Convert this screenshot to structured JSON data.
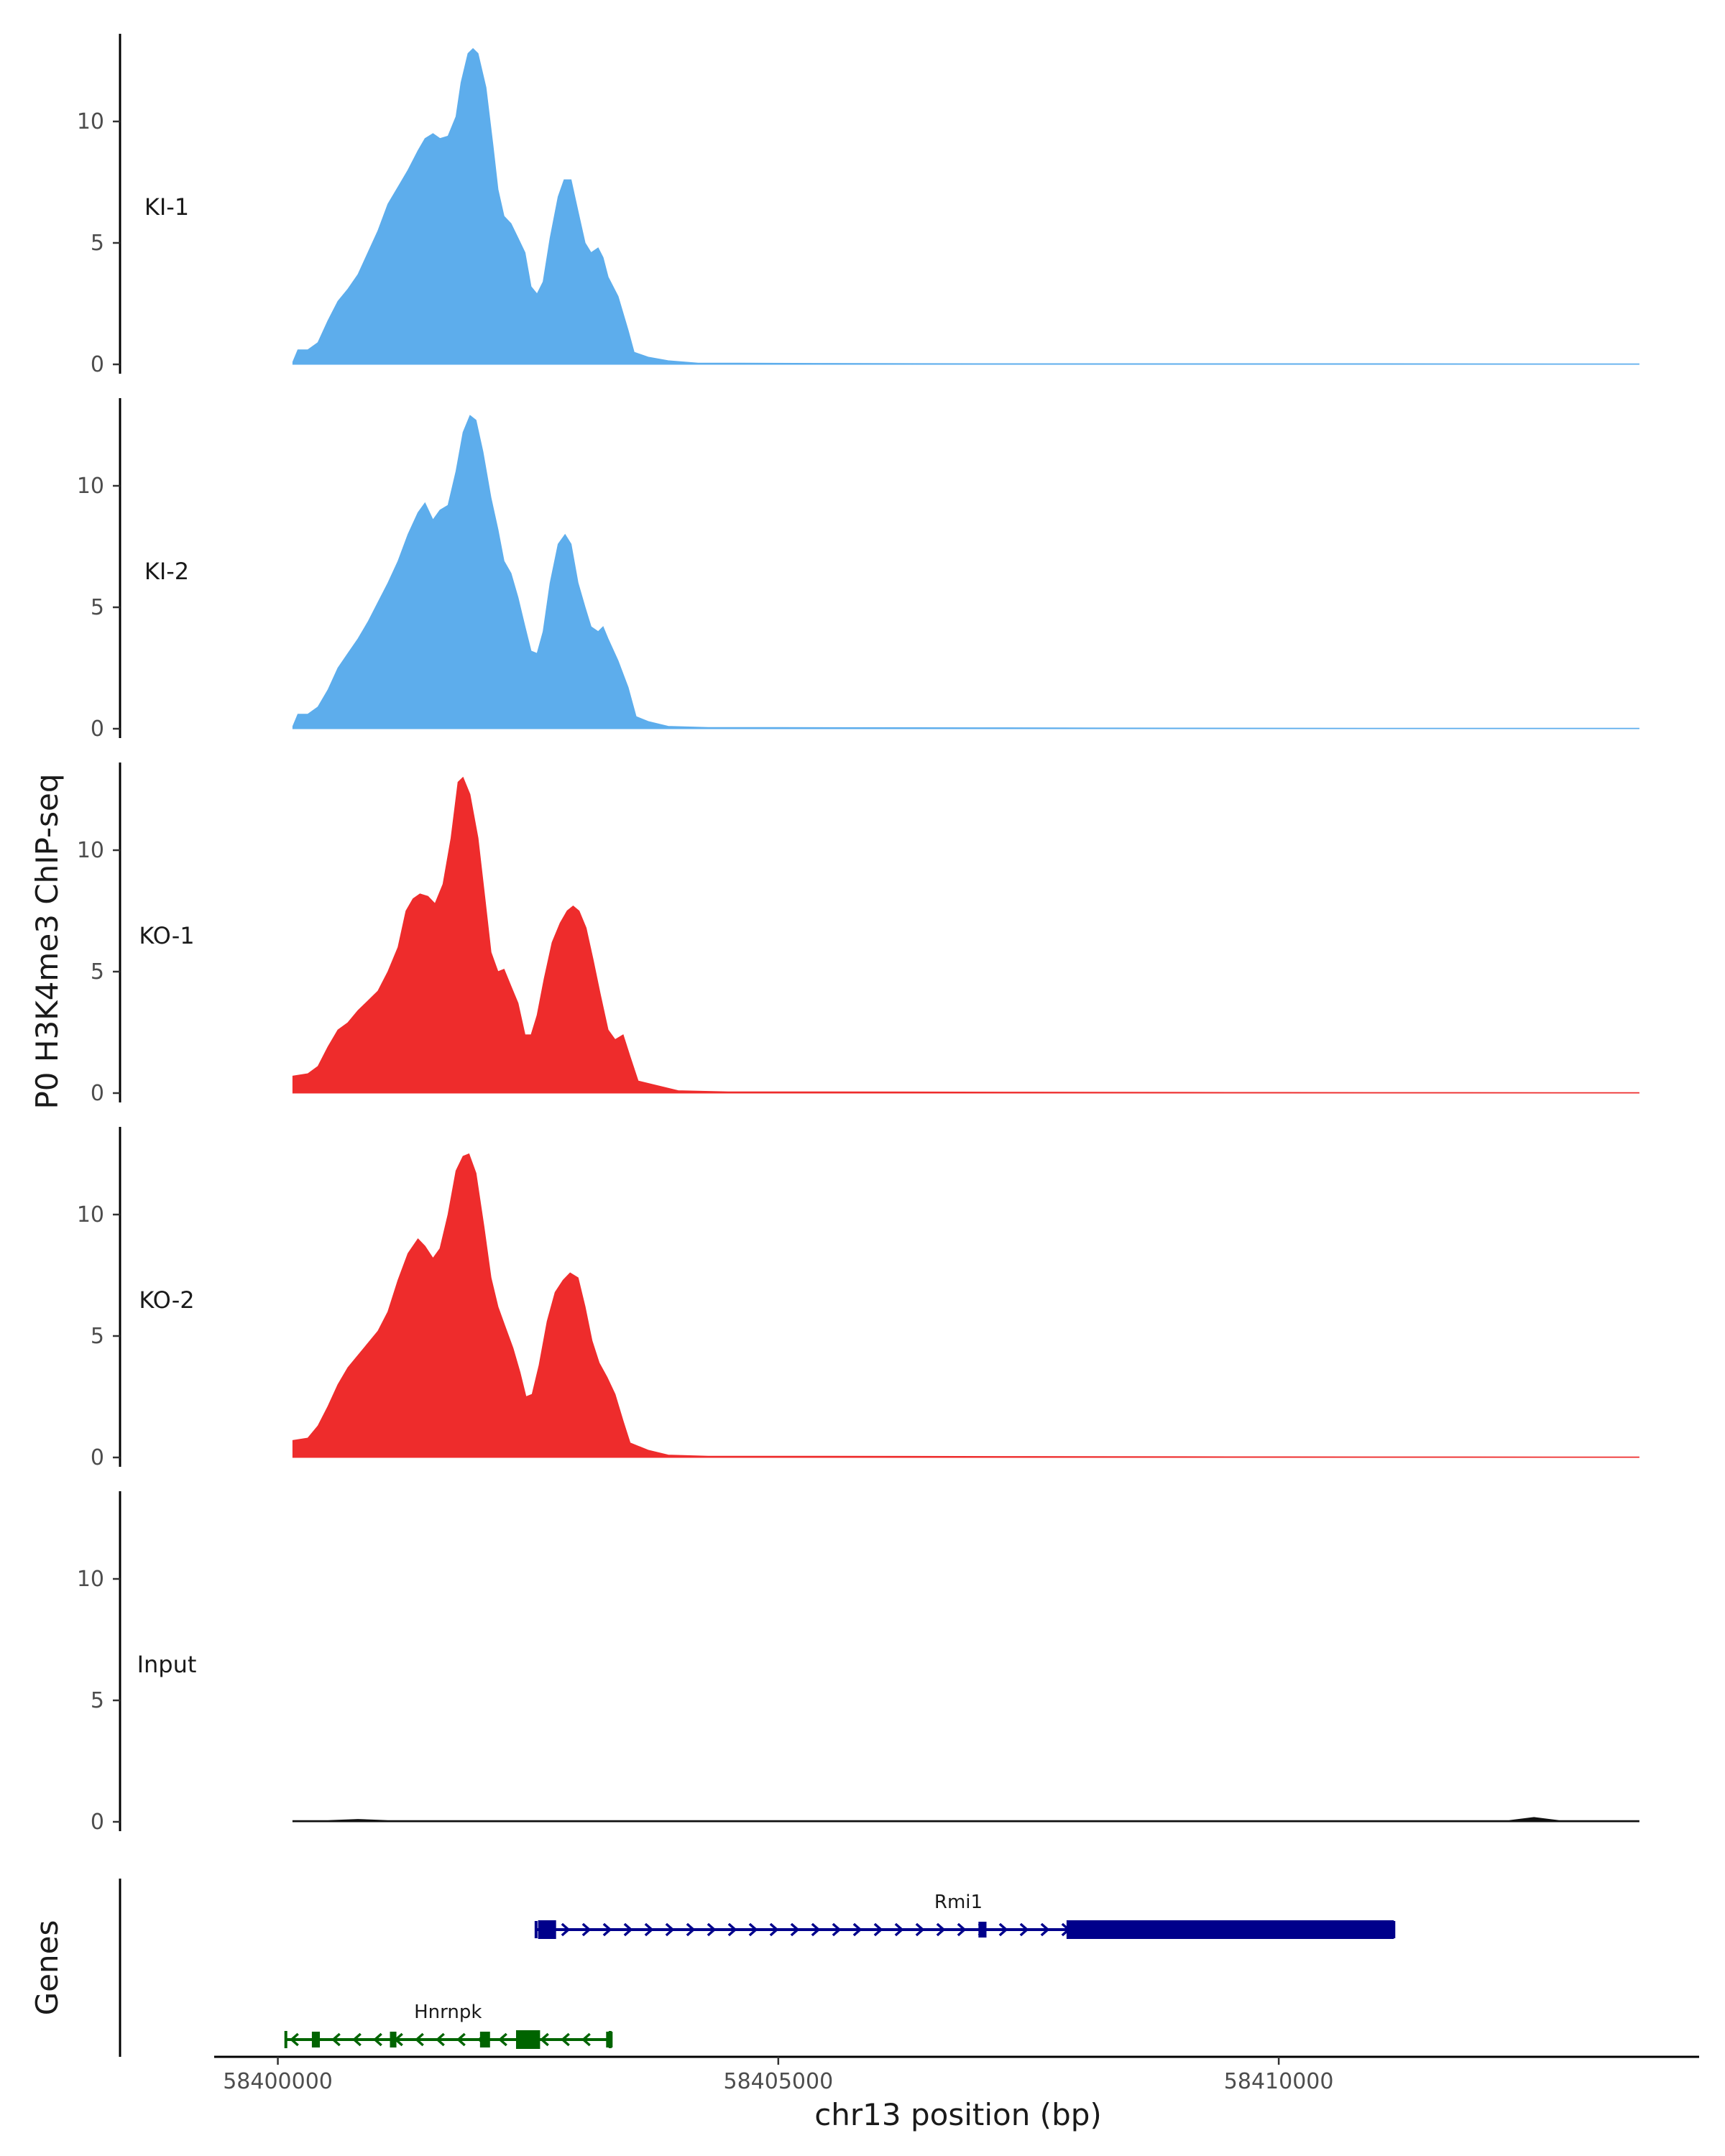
{
  "chart_data": {
    "type": "area",
    "ylabel": "P0 H3K4me3 ChIP-seq",
    "xlabel": "chr13 position (bp)",
    "genes_label": "Genes",
    "xlim": [
      58399400,
      58414200
    ],
    "ylim": [
      0,
      13.5
    ],
    "yticks": [
      0,
      5,
      10
    ],
    "xticks": [
      58400000,
      58405000,
      58410000
    ],
    "xtick_labels": [
      "58400000",
      "58405000",
      "58410000"
    ],
    "x_start": 58400150,
    "x_end": 58413600,
    "tracks": [
      {
        "name": "KI-1",
        "color": "#5DADEC",
        "points": [
          [
            58400150,
            0.1
          ],
          [
            58400200,
            0.6
          ],
          [
            58400300,
            0.6
          ],
          [
            58400400,
            0.9
          ],
          [
            58400500,
            1.8
          ],
          [
            58400600,
            2.6
          ],
          [
            58400700,
            3.1
          ],
          [
            58400800,
            3.7
          ],
          [
            58400900,
            4.6
          ],
          [
            58401000,
            5.5
          ],
          [
            58401100,
            6.6
          ],
          [
            58401200,
            7.3
          ],
          [
            58401300,
            8.0
          ],
          [
            58401400,
            8.8
          ],
          [
            58401470,
            9.3
          ],
          [
            58401550,
            9.5
          ],
          [
            58401620,
            9.3
          ],
          [
            58401700,
            9.4
          ],
          [
            58401780,
            10.2
          ],
          [
            58401830,
            11.6
          ],
          [
            58401900,
            12.8
          ],
          [
            58401950,
            13.0
          ],
          [
            58402000,
            12.8
          ],
          [
            58402080,
            11.4
          ],
          [
            58402150,
            9.0
          ],
          [
            58402200,
            7.2
          ],
          [
            58402260,
            6.1
          ],
          [
            58402330,
            5.8
          ],
          [
            58402400,
            5.2
          ],
          [
            58402470,
            4.6
          ],
          [
            58402530,
            3.2
          ],
          [
            58402590,
            2.9
          ],
          [
            58402650,
            3.4
          ],
          [
            58402720,
            5.2
          ],
          [
            58402800,
            6.9
          ],
          [
            58402860,
            7.6
          ],
          [
            58402930,
            7.6
          ],
          [
            58403000,
            6.3
          ],
          [
            58403070,
            5.0
          ],
          [
            58403130,
            4.6
          ],
          [
            58403200,
            4.8
          ],
          [
            58403250,
            4.4
          ],
          [
            58403300,
            3.6
          ],
          [
            58403400,
            2.8
          ],
          [
            58403500,
            1.4
          ],
          [
            58403560,
            0.5
          ],
          [
            58403700,
            0.3
          ],
          [
            58403900,
            0.15
          ],
          [
            58404200,
            0.05
          ],
          [
            58404600,
            0.05
          ],
          [
            58405500,
            0.04
          ],
          [
            58407000,
            0.03
          ],
          [
            58409000,
            0.03
          ],
          [
            58411000,
            0.03
          ],
          [
            58413600,
            0.02
          ]
        ]
      },
      {
        "name": "KI-2",
        "color": "#5DADEC",
        "points": [
          [
            58400150,
            0.1
          ],
          [
            58400200,
            0.6
          ],
          [
            58400300,
            0.6
          ],
          [
            58400400,
            0.9
          ],
          [
            58400500,
            1.6
          ],
          [
            58400600,
            2.5
          ],
          [
            58400700,
            3.1
          ],
          [
            58400800,
            3.7
          ],
          [
            58400900,
            4.4
          ],
          [
            58401000,
            5.2
          ],
          [
            58401100,
            6.0
          ],
          [
            58401200,
            6.9
          ],
          [
            58401300,
            8.0
          ],
          [
            58401400,
            8.9
          ],
          [
            58401470,
            9.3
          ],
          [
            58401550,
            8.6
          ],
          [
            58401620,
            9.0
          ],
          [
            58401700,
            9.2
          ],
          [
            58401780,
            10.6
          ],
          [
            58401850,
            12.2
          ],
          [
            58401920,
            12.9
          ],
          [
            58401980,
            12.7
          ],
          [
            58402050,
            11.4
          ],
          [
            58402130,
            9.5
          ],
          [
            58402200,
            8.2
          ],
          [
            58402260,
            6.9
          ],
          [
            58402330,
            6.4
          ],
          [
            58402400,
            5.4
          ],
          [
            58402470,
            4.2
          ],
          [
            58402530,
            3.2
          ],
          [
            58402590,
            3.1
          ],
          [
            58402650,
            4.0
          ],
          [
            58402720,
            6.0
          ],
          [
            58402800,
            7.6
          ],
          [
            58402870,
            8.0
          ],
          [
            58402930,
            7.6
          ],
          [
            58403000,
            6.0
          ],
          [
            58403070,
            5.0
          ],
          [
            58403130,
            4.2
          ],
          [
            58403200,
            4.0
          ],
          [
            58403250,
            4.2
          ],
          [
            58403300,
            3.7
          ],
          [
            58403400,
            2.8
          ],
          [
            58403500,
            1.7
          ],
          [
            58403580,
            0.5
          ],
          [
            58403700,
            0.3
          ],
          [
            58403900,
            0.1
          ],
          [
            58404300,
            0.05
          ],
          [
            58405000,
            0.05
          ],
          [
            58407000,
            0.04
          ],
          [
            58409000,
            0.03
          ],
          [
            58411000,
            0.02
          ],
          [
            58413600,
            0.02
          ]
        ]
      },
      {
        "name": "KO-1",
        "color": "#EE2C2C",
        "points": [
          [
            58400150,
            0.7
          ],
          [
            58400300,
            0.8
          ],
          [
            58400400,
            1.1
          ],
          [
            58400500,
            1.9
          ],
          [
            58400600,
            2.6
          ],
          [
            58400700,
            2.9
          ],
          [
            58400800,
            3.4
          ],
          [
            58400900,
            3.8
          ],
          [
            58401000,
            4.2
          ],
          [
            58401100,
            5.0
          ],
          [
            58401200,
            6.0
          ],
          [
            58401280,
            7.5
          ],
          [
            58401350,
            8.0
          ],
          [
            58401420,
            8.2
          ],
          [
            58401500,
            8.1
          ],
          [
            58401570,
            7.8
          ],
          [
            58401650,
            8.6
          ],
          [
            58401730,
            10.5
          ],
          [
            58401800,
            12.8
          ],
          [
            58401850,
            13.0
          ],
          [
            58401920,
            12.3
          ],
          [
            58402000,
            10.5
          ],
          [
            58402070,
            8.0
          ],
          [
            58402130,
            5.8
          ],
          [
            58402200,
            5.0
          ],
          [
            58402260,
            5.1
          ],
          [
            58402330,
            4.4
          ],
          [
            58402400,
            3.7
          ],
          [
            58402470,
            2.4
          ],
          [
            58402530,
            2.4
          ],
          [
            58402590,
            3.2
          ],
          [
            58402660,
            4.7
          ],
          [
            58402740,
            6.2
          ],
          [
            58402820,
            7.0
          ],
          [
            58402890,
            7.5
          ],
          [
            58402950,
            7.7
          ],
          [
            58403010,
            7.5
          ],
          [
            58403080,
            6.8
          ],
          [
            58403150,
            5.5
          ],
          [
            58403220,
            4.1
          ],
          [
            58403300,
            2.6
          ],
          [
            58403370,
            2.2
          ],
          [
            58403450,
            2.4
          ],
          [
            58403520,
            1.5
          ],
          [
            58403600,
            0.5
          ],
          [
            58403800,
            0.3
          ],
          [
            58404000,
            0.1
          ],
          [
            58404500,
            0.05
          ],
          [
            58405500,
            0.05
          ],
          [
            58407500,
            0.04
          ],
          [
            58409500,
            0.03
          ],
          [
            58413600,
            0.02
          ]
        ]
      },
      {
        "name": "KO-2",
        "color": "#EE2C2C",
        "points": [
          [
            58400150,
            0.7
          ],
          [
            58400300,
            0.8
          ],
          [
            58400400,
            1.3
          ],
          [
            58400500,
            2.1
          ],
          [
            58400600,
            3.0
          ],
          [
            58400700,
            3.7
          ],
          [
            58400800,
            4.2
          ],
          [
            58400900,
            4.7
          ],
          [
            58401000,
            5.2
          ],
          [
            58401100,
            6.0
          ],
          [
            58401200,
            7.3
          ],
          [
            58401300,
            8.4
          ],
          [
            58401400,
            9.0
          ],
          [
            58401470,
            8.7
          ],
          [
            58401550,
            8.2
          ],
          [
            58401620,
            8.6
          ],
          [
            58401700,
            10.0
          ],
          [
            58401780,
            11.8
          ],
          [
            58401850,
            12.4
          ],
          [
            58401910,
            12.5
          ],
          [
            58401980,
            11.7
          ],
          [
            58402060,
            9.5
          ],
          [
            58402130,
            7.4
          ],
          [
            58402200,
            6.2
          ],
          [
            58402270,
            5.4
          ],
          [
            58402350,
            4.5
          ],
          [
            58402420,
            3.5
          ],
          [
            58402480,
            2.5
          ],
          [
            58402540,
            2.6
          ],
          [
            58402610,
            3.8
          ],
          [
            58402690,
            5.6
          ],
          [
            58402770,
            6.8
          ],
          [
            58402850,
            7.3
          ],
          [
            58402920,
            7.6
          ],
          [
            58403000,
            7.4
          ],
          [
            58403070,
            6.2
          ],
          [
            58403140,
            4.8
          ],
          [
            58403210,
            3.9
          ],
          [
            58403290,
            3.3
          ],
          [
            58403370,
            2.6
          ],
          [
            58403450,
            1.5
          ],
          [
            58403520,
            0.6
          ],
          [
            58403700,
            0.3
          ],
          [
            58403900,
            0.1
          ],
          [
            58404300,
            0.05
          ],
          [
            58405500,
            0.05
          ],
          [
            58407500,
            0.04
          ],
          [
            58409500,
            0.03
          ],
          [
            58413600,
            0.02
          ]
        ]
      },
      {
        "name": "Input",
        "color": "#111111",
        "points": [
          [
            58400150,
            0.05
          ],
          [
            58400500,
            0.05
          ],
          [
            58400800,
            0.1
          ],
          [
            58401100,
            0.05
          ],
          [
            58401600,
            0.05
          ],
          [
            58402500,
            0.05
          ],
          [
            58404000,
            0.05
          ],
          [
            58406000,
            0.05
          ],
          [
            58408000,
            0.05
          ],
          [
            58410000,
            0.05
          ],
          [
            58411500,
            0.05
          ],
          [
            58412300,
            0.05
          ],
          [
            58412550,
            0.18
          ],
          [
            58412800,
            0.05
          ],
          [
            58413600,
            0.05
          ]
        ]
      }
    ],
    "genes": [
      {
        "name": "Rmi1",
        "strand": "+",
        "color": "#00008B",
        "start": 58402580,
        "end": 58411150,
        "exons": [
          [
            58402600,
            58402780
          ],
          [
            58407000,
            58407080
          ],
          [
            58407880,
            58411150
          ]
        ],
        "label_x": 58406800
      },
      {
        "name": "Hnrnpk",
        "strand": "-",
        "color": "#006400",
        "start": 58400080,
        "end": 58403320,
        "exons": [
          [
            58400340,
            58400420
          ],
          [
            58401120,
            58401180
          ],
          [
            58402020,
            58402120
          ],
          [
            58402380,
            58402620
          ],
          [
            58403280,
            58403320
          ]
        ],
        "label_x": 58401700
      }
    ]
  }
}
